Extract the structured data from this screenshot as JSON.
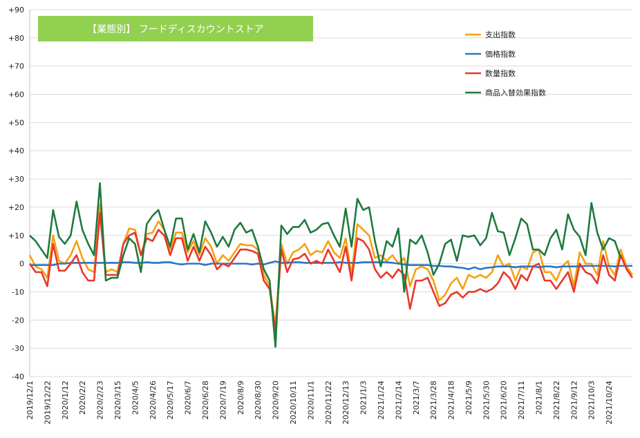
{
  "chart_data": {
    "type": "line",
    "title": "【業態別】 フードディスカウントストア",
    "ylim": [
      -40,
      90
    ],
    "yticks": [
      "-40",
      "-30",
      "-20",
      "-10",
      "0",
      "+10",
      "+20",
      "+30",
      "+40",
      "+50",
      "+60",
      "+70",
      "+80",
      "+90"
    ],
    "grid": true,
    "legend_position": "top-right",
    "x_start": "2019/12/1",
    "x_tick_labels": [
      "2019/12/1",
      "2019/12/22",
      "2020/1/12",
      "2020/2/2",
      "2020/2/23",
      "2020/3/15",
      "2020/4/5",
      "2020/4/26",
      "2020/5/17",
      "2020/6/7",
      "2020/6/28",
      "2020/7/19",
      "2020/8/9",
      "2020/8/30",
      "2020/9/20",
      "2020/10/11",
      "2020/11/1",
      "2020/11/22",
      "2020/12/13",
      "2021/1/3",
      "2021/1/24",
      "2021/2/14",
      "2021/3/7",
      "2021/3/28",
      "2021/4/18",
      "2021/5/9",
      "2021/5/30",
      "2021/6/20",
      "2021/7/11",
      "2021/8/1",
      "2021/8/22",
      "2021/9/12",
      "2021/10/3",
      "2021/10/24"
    ],
    "series": [
      {
        "name": "支出指数",
        "color": "#f5a00f",
        "values": [
          3,
          -1,
          -2,
          -5,
          10,
          1,
          0,
          3,
          8,
          2,
          -2,
          -3,
          21,
          -3,
          -2,
          -3,
          7,
          12.5,
          12,
          3,
          10.5,
          11,
          15,
          12,
          5,
          11,
          11,
          4,
          8,
          3,
          9,
          6,
          0,
          3,
          1,
          4,
          7,
          6.5,
          6.5,
          5,
          -4,
          -8,
          -22,
          7,
          0,
          4,
          5,
          7,
          3,
          4.5,
          4,
          8,
          4,
          2,
          9,
          -4,
          14,
          12,
          10,
          2,
          3,
          1,
          3,
          0,
          2,
          -8,
          -2,
          -1,
          -2,
          -6,
          -13,
          -11,
          -7,
          -5,
          -9,
          -4,
          -5,
          -4,
          -5,
          -3,
          3,
          -1,
          0,
          -6,
          -1,
          -2,
          4,
          5,
          -3,
          -3,
          -6,
          -1,
          1,
          -8,
          4,
          0,
          0,
          -4,
          8,
          -1,
          -4,
          5,
          -1,
          -4
        ]
      },
      {
        "name": "価格指数",
        "color": "#2e75c3",
        "values": [
          -0.5,
          -0.5,
          -0.5,
          -0.5,
          -0.5,
          0,
          0,
          0.3,
          0.3,
          0.3,
          0.3,
          0.3,
          0.3,
          0.3,
          0.3,
          0.3,
          0.5,
          0.5,
          0.3,
          0.3,
          0.5,
          0.3,
          0.3,
          0.5,
          0.5,
          0,
          -0.3,
          0,
          0,
          0,
          -0.5,
          0,
          0,
          0,
          0,
          0,
          0,
          0,
          -0.3,
          0,
          -0.3,
          0.3,
          0.8,
          0.3,
          0.3,
          0.5,
          0.5,
          0.3,
          0.3,
          0.3,
          0.3,
          0.3,
          0.3,
          0.5,
          0.3,
          0.3,
          0.3,
          0.5,
          0.5,
          0.5,
          0.5,
          0.5,
          0.3,
          0,
          -0.3,
          -0.5,
          -0.5,
          -0.5,
          -0.5,
          -0.8,
          -0.8,
          -1,
          -1,
          -1.3,
          -1.5,
          -2,
          -1.3,
          -2,
          -1.5,
          -1.3,
          -1,
          -1,
          -1,
          -1.3,
          -1,
          -1,
          -1,
          -1.3,
          -1,
          -1,
          -1.3,
          -1,
          -1,
          -1,
          -1,
          -0.8,
          -0.8,
          -0.8,
          -0.8,
          -0.8,
          -1,
          -0.8,
          -0.8,
          -0.8
        ]
      },
      {
        "name": "数量指数",
        "color": "#e8372a",
        "values": [
          0,
          -3,
          -3,
          -8,
          7,
          -2.5,
          -2.5,
          0,
          3,
          -3,
          -6,
          -6,
          18,
          -4,
          -4,
          -4,
          7,
          10,
          11,
          3,
          9,
          8,
          12,
          10,
          3,
          9,
          9,
          1,
          6,
          1,
          6,
          3,
          -2,
          0,
          -1,
          2,
          5,
          5,
          4.5,
          3.5,
          -6,
          -9,
          -24,
          5,
          -3,
          1.5,
          2,
          3.5,
          0,
          1,
          0,
          5,
          1,
          -3,
          6,
          -6,
          9,
          8,
          5,
          -2,
          -5,
          -3,
          -5,
          -2,
          -4,
          -16,
          -6,
          -6,
          -5,
          -10,
          -15,
          -14,
          -11,
          -10,
          -12,
          -10,
          -10,
          -9,
          -10,
          -9,
          -7,
          -3,
          -5,
          -9,
          -4,
          -6,
          -1,
          0,
          -6,
          -6,
          -9,
          -6,
          -3,
          -10,
          0,
          -3,
          -4,
          -7,
          3,
          -4,
          -6,
          3,
          -2,
          -5
        ]
      },
      {
        "name": "商品入替効果指数",
        "color": "#1e7a3e",
        "values": [
          10,
          8,
          5,
          2,
          19,
          9.5,
          7,
          10,
          22,
          12,
          7,
          3,
          28.5,
          -6,
          -5,
          -5,
          3,
          9,
          7,
          -3,
          14,
          17,
          19,
          12,
          6,
          16,
          16,
          5,
          10.5,
          4,
          15,
          11,
          6,
          9.5,
          6,
          12,
          14.5,
          11,
          12,
          6,
          -2,
          -6,
          -29.5,
          13.5,
          10.5,
          13,
          13,
          15.5,
          11,
          12,
          14,
          14.5,
          10,
          6,
          19.5,
          6,
          23,
          19,
          20,
          8,
          -1,
          8,
          6,
          12.5,
          -10,
          8.5,
          7,
          10,
          4,
          -4,
          0,
          7,
          8.5,
          1,
          10,
          9.5,
          10,
          6.5,
          9,
          18,
          11.5,
          11,
          3,
          9,
          16,
          14,
          5,
          5,
          3,
          9,
          12,
          5,
          17.5,
          12,
          9.5,
          3,
          21.5,
          11,
          5,
          9,
          8,
          2
        ]
      }
    ]
  }
}
